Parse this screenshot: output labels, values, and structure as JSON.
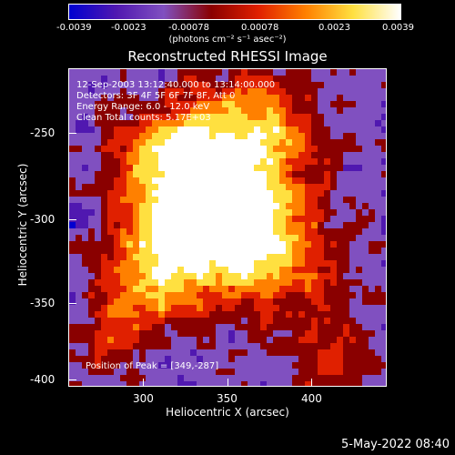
{
  "colorbar": {
    "ticks": [
      "-0.0039",
      "-0.0023",
      "-0.00078",
      "0.00078",
      "0.0023",
      "0.0039"
    ],
    "units": "(photons cm⁻² s⁻¹ asec⁻²)"
  },
  "plot": {
    "title": "Reconstructed RHESSI Image",
    "info": {
      "time": "12-Sep-2003 13:12:40.000 to 13:14:00.000",
      "detectors": "Detectors: 3F 4F 5F 6F 7F 8F, Att 0",
      "energy": "Energy Range: 6.0 - 12.0 keV",
      "clean": "Clean     Total counts: 5.17E+03",
      "peak": "Position of Peak = [349,-287]"
    },
    "xlabel": "Heliocentric X (arcsec)",
    "ylabel": "Heliocentric Y (arcsec)",
    "xticks": [
      "300",
      "350",
      "400"
    ],
    "yticks": [
      "-250",
      "-300",
      "-350",
      "-400"
    ]
  },
  "timestamp": "5-May-2022 08:40",
  "colors": {
    "colormap": [
      "#0000d0",
      "#5018b0",
      "#8050c0",
      "#8a0000",
      "#e02000",
      "#ff8000",
      "#ffe040",
      "#ffffff"
    ]
  }
}
